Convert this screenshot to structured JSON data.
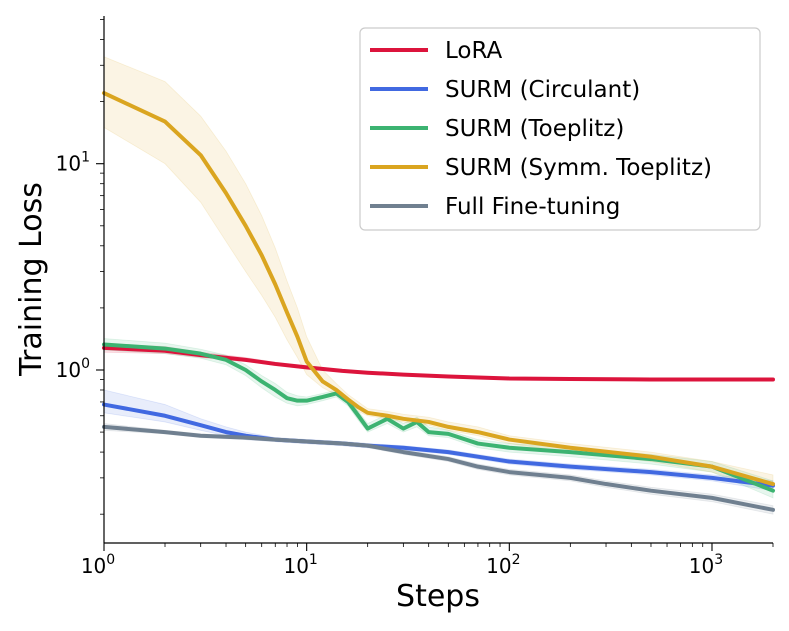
{
  "chart_data": {
    "type": "line",
    "xscale": "log",
    "yscale": "log",
    "xlabel": "Steps",
    "ylabel": "Training Loss",
    "xlim": [
      1,
      2000
    ],
    "ylim": [
      0.145,
      52
    ],
    "x_ticks": [
      {
        "base": "10",
        "exp": "0",
        "value": 1
      },
      {
        "base": "10",
        "exp": "1",
        "value": 10
      },
      {
        "base": "10",
        "exp": "2",
        "value": 100
      },
      {
        "base": "10",
        "exp": "3",
        "value": 1000
      }
    ],
    "y_ticks": [
      {
        "base": "10",
        "exp": "0",
        "value": 1
      },
      {
        "base": "10",
        "exp": "1",
        "value": 10
      }
    ],
    "legend_position": "top-right",
    "series": [
      {
        "name": "LoRA",
        "color": "#dc143c",
        "x": [
          1,
          2,
          3,
          5,
          7,
          10,
          15,
          20,
          30,
          50,
          70,
          100,
          200,
          500,
          1000,
          2000
        ],
        "y": [
          1.28,
          1.24,
          1.18,
          1.12,
          1.07,
          1.03,
          0.99,
          0.97,
          0.95,
          0.93,
          0.92,
          0.91,
          0.905,
          0.9,
          0.9,
          0.9
        ],
        "lower": [
          1.22,
          1.2,
          1.15,
          1.1,
          1.05,
          1.01,
          0.98,
          0.96,
          0.94,
          0.92,
          0.91,
          0.9,
          0.9,
          0.89,
          0.89,
          0.89
        ],
        "upper": [
          1.34,
          1.3,
          1.22,
          1.15,
          1.09,
          1.05,
          1.0,
          0.98,
          0.96,
          0.94,
          0.93,
          0.92,
          0.91,
          0.91,
          0.91,
          0.91
        ]
      },
      {
        "name": "SURM (Circulant)",
        "color": "#4169e1",
        "x": [
          1,
          2,
          3,
          4,
          5,
          7,
          10,
          15,
          20,
          30,
          50,
          70,
          100,
          200,
          500,
          1000,
          2000
        ],
        "y": [
          0.68,
          0.6,
          0.54,
          0.5,
          0.48,
          0.46,
          0.45,
          0.44,
          0.43,
          0.42,
          0.4,
          0.38,
          0.36,
          0.34,
          0.32,
          0.3,
          0.275
        ],
        "lower": [
          0.62,
          0.56,
          0.51,
          0.48,
          0.46,
          0.45,
          0.44,
          0.43,
          0.42,
          0.41,
          0.39,
          0.37,
          0.35,
          0.33,
          0.31,
          0.29,
          0.26
        ],
        "upper": [
          0.8,
          0.68,
          0.58,
          0.53,
          0.5,
          0.47,
          0.46,
          0.45,
          0.44,
          0.43,
          0.41,
          0.39,
          0.37,
          0.35,
          0.33,
          0.31,
          0.29
        ]
      },
      {
        "name": "SURM (Toeplitz)",
        "color": "#3cb371",
        "x": [
          1,
          2,
          3,
          4,
          5,
          6,
          7,
          8,
          9,
          10,
          12,
          14,
          16,
          18,
          20,
          25,
          30,
          35,
          40,
          50,
          70,
          100,
          200,
          500,
          1000,
          2000
        ],
        "y": [
          1.33,
          1.27,
          1.2,
          1.12,
          1.0,
          0.88,
          0.8,
          0.73,
          0.71,
          0.71,
          0.74,
          0.77,
          0.7,
          0.6,
          0.52,
          0.58,
          0.52,
          0.56,
          0.5,
          0.49,
          0.44,
          0.42,
          0.4,
          0.37,
          0.34,
          0.26
        ],
        "lower": [
          1.25,
          1.2,
          1.14,
          1.06,
          0.94,
          0.82,
          0.74,
          0.69,
          0.67,
          0.68,
          0.71,
          0.74,
          0.67,
          0.57,
          0.5,
          0.55,
          0.5,
          0.53,
          0.48,
          0.47,
          0.42,
          0.4,
          0.38,
          0.35,
          0.32,
          0.24
        ],
        "upper": [
          1.42,
          1.35,
          1.26,
          1.18,
          1.06,
          0.94,
          0.86,
          0.78,
          0.75,
          0.74,
          0.77,
          0.8,
          0.73,
          0.63,
          0.55,
          0.61,
          0.55,
          0.59,
          0.53,
          0.51,
          0.46,
          0.44,
          0.42,
          0.39,
          0.36,
          0.29
        ]
      },
      {
        "name": "SURM (Symm. Toeplitz)",
        "color": "#daa520",
        "x": [
          1,
          2,
          3,
          4,
          5,
          6,
          7,
          8,
          9,
          10,
          12,
          14,
          16,
          18,
          20,
          25,
          30,
          40,
          50,
          70,
          100,
          200,
          500,
          1000,
          2000
        ],
        "y": [
          22,
          16,
          11,
          7.2,
          5.0,
          3.6,
          2.6,
          1.9,
          1.45,
          1.1,
          0.88,
          0.8,
          0.72,
          0.66,
          0.62,
          0.6,
          0.58,
          0.56,
          0.53,
          0.5,
          0.46,
          0.42,
          0.38,
          0.34,
          0.28
        ],
        "lower": [
          15,
          10,
          6.5,
          4.2,
          3.0,
          2.3,
          1.8,
          1.4,
          1.15,
          0.95,
          0.82,
          0.76,
          0.69,
          0.63,
          0.6,
          0.58,
          0.56,
          0.54,
          0.51,
          0.48,
          0.44,
          0.4,
          0.36,
          0.32,
          0.26
        ],
        "upper": [
          33,
          25,
          17,
          11.5,
          8.0,
          5.6,
          3.9,
          2.7,
          2.0,
          1.45,
          1.0,
          0.86,
          0.76,
          0.7,
          0.65,
          0.63,
          0.61,
          0.59,
          0.56,
          0.53,
          0.48,
          0.44,
          0.4,
          0.36,
          0.31
        ]
      },
      {
        "name": "Full Fine-tuning",
        "color": "#708090",
        "x": [
          1,
          2,
          3,
          5,
          7,
          10,
          15,
          20,
          30,
          50,
          70,
          100,
          200,
          300,
          500,
          1000,
          2000
        ],
        "y": [
          0.53,
          0.5,
          0.48,
          0.47,
          0.46,
          0.45,
          0.44,
          0.43,
          0.4,
          0.37,
          0.34,
          0.32,
          0.3,
          0.28,
          0.26,
          0.24,
          0.21
        ],
        "lower": [
          0.51,
          0.49,
          0.47,
          0.46,
          0.45,
          0.44,
          0.43,
          0.42,
          0.39,
          0.36,
          0.33,
          0.31,
          0.29,
          0.27,
          0.25,
          0.23,
          0.2
        ],
        "upper": [
          0.55,
          0.51,
          0.49,
          0.48,
          0.47,
          0.46,
          0.45,
          0.44,
          0.41,
          0.38,
          0.35,
          0.33,
          0.31,
          0.29,
          0.27,
          0.25,
          0.22
        ]
      }
    ]
  }
}
